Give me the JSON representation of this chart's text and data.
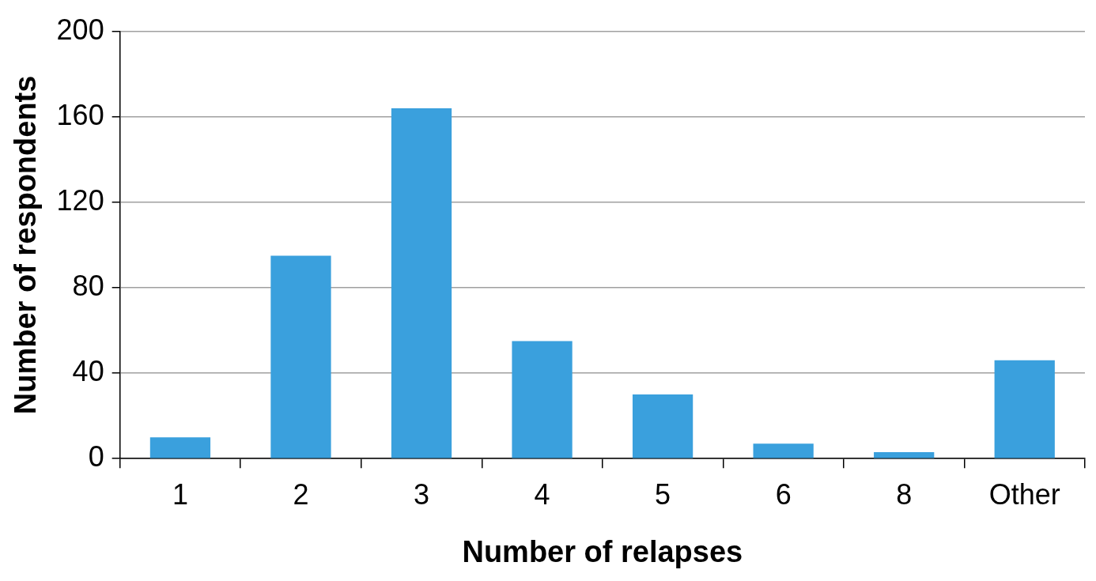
{
  "chart_data": {
    "type": "bar",
    "xlabel": "Number of relapses",
    "ylabel": "Number of respondents",
    "categories": [
      "1",
      "2",
      "3",
      "4",
      "5",
      "6",
      "8",
      "Other"
    ],
    "values": [
      10,
      95,
      164,
      55,
      30,
      7,
      3,
      46
    ],
    "color": "#3aa0dd",
    "ylim": [
      0,
      200
    ],
    "yticks": [
      0,
      40,
      80,
      120,
      160,
      200
    ],
    "grid": "y",
    "legend": false
  }
}
